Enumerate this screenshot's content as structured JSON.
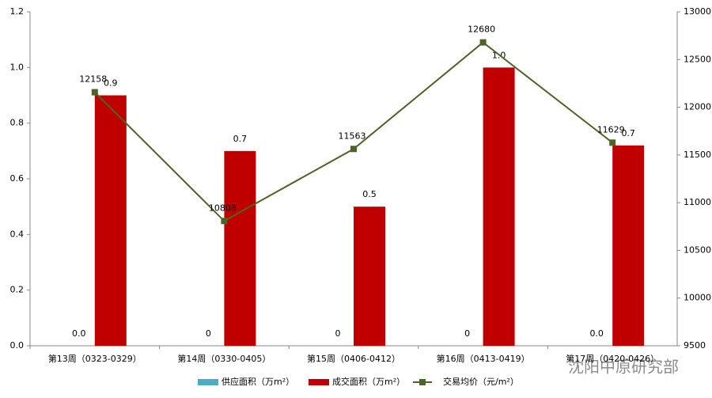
{
  "chart_data": {
    "type": "bar-line",
    "categories": [
      "第13周（0323-0329）",
      "第14周（0330-0405）",
      "第15周（0406-0412）",
      "第16周（0413-0419）",
      "第17周（0420-0426）"
    ],
    "series": [
      {
        "name": "供应面积（万m²）",
        "color": "#4bacc6",
        "type": "bar",
        "values": [
          0,
          0,
          0,
          0,
          0
        ],
        "value_labels": [
          "0.0",
          "0",
          "0",
          "0",
          "0.0"
        ]
      },
      {
        "name": "成交面积（万m²）",
        "color": "#c00000",
        "type": "bar",
        "values": [
          0.9,
          0.7,
          0.5,
          1.0,
          0.72
        ],
        "value_labels": [
          "0.9",
          "0.7",
          "0.5",
          "1.0",
          "0.7"
        ]
      },
      {
        "name": "交易均价（元/m²）",
        "color": "#4f6228",
        "type": "line",
        "axis": "y2",
        "values": [
          12158,
          10808,
          11563,
          12680,
          11629
        ]
      }
    ],
    "ylim": [
      0,
      1.2
    ],
    "yticks": [
      {
        "value": 0,
        "label": "0.0"
      },
      0.2,
      0.4,
      0.6,
      0.8,
      {
        "value": 1,
        "label": "1.0"
      },
      1.2
    ],
    "y2lim": [
      9500,
      13000
    ],
    "y2ticks": [
      9500,
      10000,
      10500,
      11000,
      11500,
      12000,
      12500,
      13000
    ],
    "legend": "bottom",
    "watermark": "沈阳中原研究部"
  }
}
